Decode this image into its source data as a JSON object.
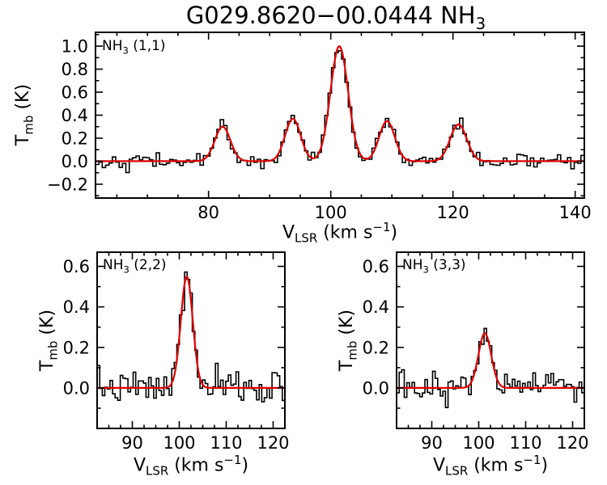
{
  "title": {
    "main": "G029.8620−00.0444 NH",
    "sub": "3"
  },
  "axis_labels": {
    "y_main": "T",
    "y_sub": "mb",
    "y_rest": " (K)",
    "x_main": "V",
    "x_sub": "LSR",
    "x_rest": " (km s",
    "x_sup": "−1",
    "x_end": ")"
  },
  "colors": {
    "data": "#000000",
    "fit": "#e00000",
    "background": "#ffffff"
  },
  "chart_data": [
    {
      "type": "line",
      "label": {
        "main": "NH",
        "sub": "3",
        "rest": " (1,1)"
      },
      "xlabel": "VLSR (km s-1)",
      "ylabel": "Tmb (K)",
      "xlim": [
        61.5,
        141.5
      ],
      "ylim": [
        -0.32,
        1.12
      ],
      "xticks": [
        80,
        100,
        120,
        140
      ],
      "yticks": [
        -0.2,
        0.0,
        0.2,
        0.4,
        0.6,
        0.8,
        1.0
      ],
      "xminor": 5,
      "yminor": 0.1,
      "x_decimals": 0,
      "y_decimals": 1,
      "grid": false,
      "legend": "none",
      "series": [
        {
          "name": "observed spectrum",
          "style": "histogram",
          "color": "#000000",
          "channel_width": 0.55,
          "noise_sigma": 0.03,
          "seed": 42
        },
        {
          "name": "gaussian fit",
          "style": "line",
          "color": "#e00000",
          "components": [
            {
              "center": 82.3,
              "amplitude": 0.3,
              "fwhm": 3.0
            },
            {
              "center": 93.8,
              "amplitude": 0.37,
              "fwhm": 3.0
            },
            {
              "center": 101.4,
              "amplitude": 1.0,
              "fwhm": 3.4
            },
            {
              "center": 109.2,
              "amplitude": 0.35,
              "fwhm": 3.0
            },
            {
              "center": 120.9,
              "amplitude": 0.32,
              "fwhm": 3.2
            }
          ]
        }
      ]
    },
    {
      "type": "line",
      "label": {
        "main": "NH",
        "sub": "3",
        "rest": " (2,2)"
      },
      "xlabel": "VLSR (km s-1)",
      "ylabel": "Tmb (K)",
      "xlim": [
        82.5,
        122.5
      ],
      "ylim": [
        -0.2,
        0.67
      ],
      "xticks": [
        90,
        100,
        110,
        120
      ],
      "yticks": [
        0.0,
        0.2,
        0.4,
        0.6
      ],
      "xminor": 2.5,
      "yminor": 0.1,
      "x_decimals": 0,
      "y_decimals": 1,
      "grid": false,
      "legend": "none",
      "series": [
        {
          "name": "observed spectrum",
          "style": "histogram",
          "color": "#000000",
          "channel_width": 0.55,
          "noise_sigma": 0.04,
          "seed": 7
        },
        {
          "name": "gaussian fit",
          "style": "line",
          "color": "#e00000",
          "components": [
            {
              "center": 101.6,
              "amplitude": 0.55,
              "fwhm": 3.0
            }
          ]
        }
      ]
    },
    {
      "type": "line",
      "label": {
        "main": "NH",
        "sub": "3",
        "rest": " (3,3)"
      },
      "xlabel": "VLSR (km s-1)",
      "ylabel": "Tmb (K)",
      "xlim": [
        82.5,
        122.5
      ],
      "ylim": [
        -0.2,
        0.67
      ],
      "xticks": [
        90,
        100,
        110,
        120
      ],
      "yticks": [
        0.0,
        0.2,
        0.4,
        0.6
      ],
      "xminor": 2.5,
      "yminor": 0.1,
      "x_decimals": 0,
      "y_decimals": 1,
      "grid": false,
      "legend": "none",
      "series": [
        {
          "name": "observed spectrum",
          "style": "histogram",
          "color": "#000000",
          "channel_width": 0.55,
          "noise_sigma": 0.035,
          "seed": 13
        },
        {
          "name": "gaussian fit",
          "style": "line",
          "color": "#e00000",
          "components": [
            {
              "center": 101.3,
              "amplitude": 0.27,
              "fwhm": 3.2
            }
          ]
        }
      ]
    }
  ]
}
